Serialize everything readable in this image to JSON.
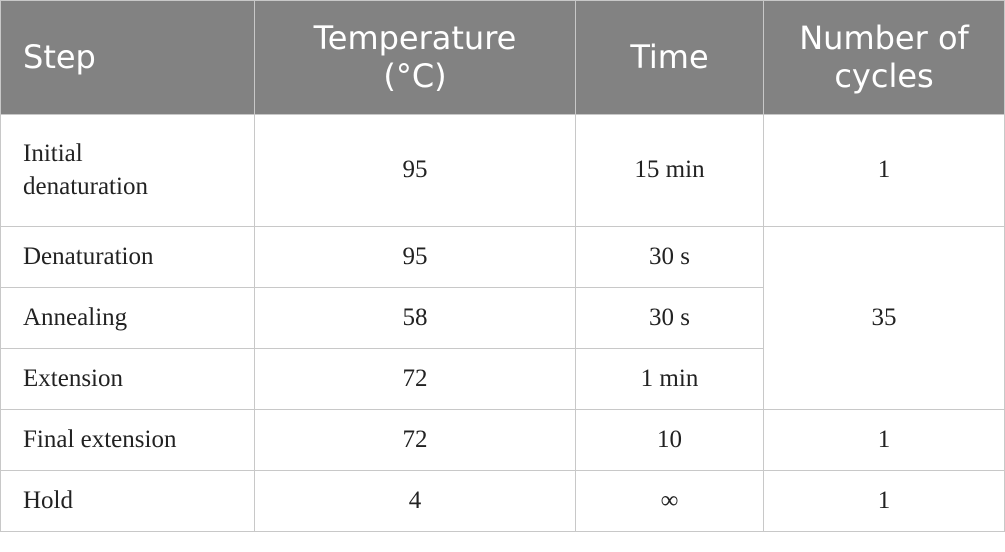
{
  "table": {
    "header": [
      "Step",
      "Temperature (°C)",
      "Time",
      "Number of cycles"
    ],
    "rows": [
      [
        "Initial denaturation",
        "95",
        "15 min",
        "1"
      ],
      [
        "Denaturation",
        "95",
        "30 s",
        "35"
      ],
      [
        "Annealing",
        "58",
        "30 s"
      ],
      [
        "Extension",
        "72",
        "1 min"
      ],
      [
        "Final extension",
        "72",
        "10",
        "1"
      ],
      [
        "Hold",
        "4",
        "∞",
        "1"
      ]
    ]
  }
}
